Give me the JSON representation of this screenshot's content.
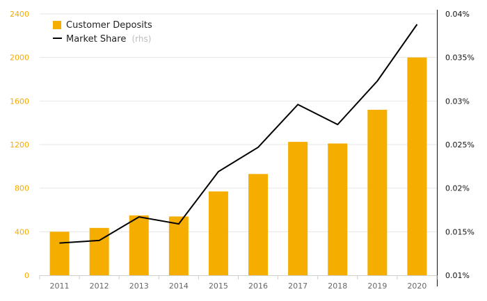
{
  "chart_data": {
    "type": "bar-line",
    "categories": [
      "2011",
      "2012",
      "2013",
      "2014",
      "2015",
      "2016",
      "2017",
      "2018",
      "2019",
      "2020"
    ],
    "series": [
      {
        "name": "Customer Deposits",
        "type": "bar",
        "axis": "left",
        "color": "#f5ad00",
        "values": [
          400,
          435,
          550,
          540,
          770,
          930,
          1225,
          1210,
          1520,
          2000
        ]
      },
      {
        "name": "Market Share",
        "type": "line",
        "axis": "right",
        "color": "#000000",
        "values": [
          0.0137,
          0.014,
          0.0167,
          0.0159,
          0.0219,
          0.0247,
          0.0296,
          0.0273,
          0.0323,
          0.0388
        ]
      }
    ],
    "left_axis": {
      "ylim": [
        0,
        2400
      ],
      "ticks": [
        "0",
        "400",
        "800",
        "1200",
        "1600",
        "2000",
        "2400"
      ]
    },
    "right_axis": {
      "ylim": [
        0.01,
        0.04
      ],
      "ticks": [
        "0.01%",
        "0.015%",
        "0.02%",
        "0.025%",
        "0.03%",
        "0.035%",
        "0.04%"
      ]
    },
    "legend": {
      "position": "top-left",
      "items": [
        {
          "label": "Customer Deposits",
          "note": ""
        },
        {
          "label": "Market Share",
          "note": "(rhs)"
        }
      ]
    },
    "grid": true
  }
}
